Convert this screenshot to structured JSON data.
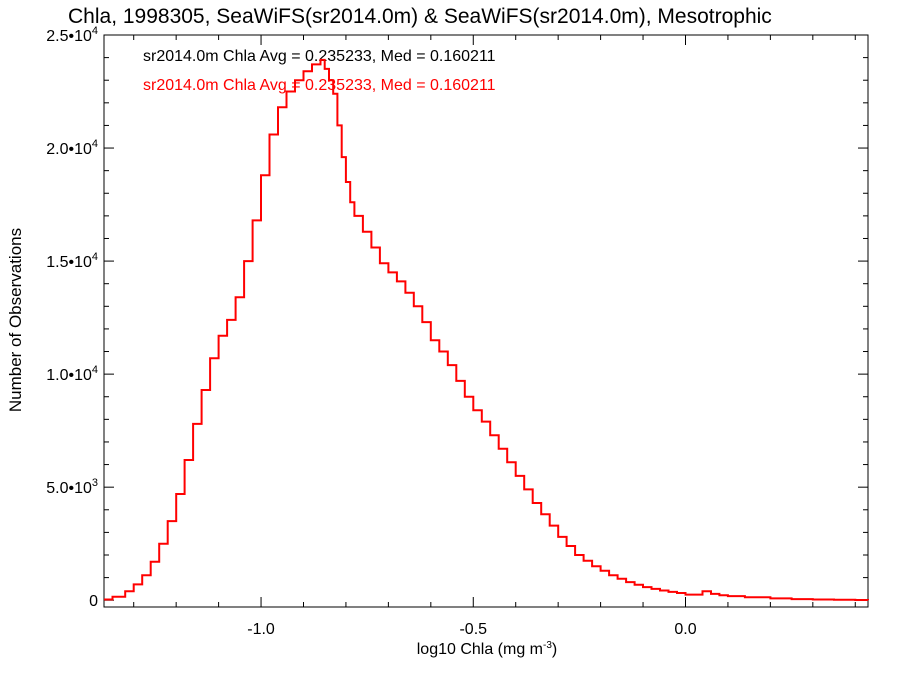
{
  "chart_data": {
    "type": "line",
    "title": "Chla, 1998305, SeaWiFS(sr2014.0m) & SeaWiFS(sr2014.0m), Mesotrophic",
    "xlabel": "log10 Chla (mg m",
    "xlabel_sup": "-3",
    "xlabel_close": ")",
    "ylabel": "Number of Observations",
    "xlim": [
      -1.37,
      0.43
    ],
    "ylim": [
      -300,
      25000
    ],
    "grid": false,
    "x_ticks": [
      {
        "value": -1.0,
        "label": "-1.0"
      },
      {
        "value": -0.5,
        "label": "-0.5"
      },
      {
        "value": 0.0,
        "label": "0.0"
      }
    ],
    "y_ticks": [
      {
        "value": 0,
        "mant": "0",
        "exp": ""
      },
      {
        "value": 5000,
        "mant": "5.0•10",
        "exp": "3"
      },
      {
        "value": 10000,
        "mant": "1.0•10",
        "exp": "4"
      },
      {
        "value": 15000,
        "mant": "1.5•10",
        "exp": "4"
      },
      {
        "value": 20000,
        "mant": "2.0•10",
        "exp": "4"
      },
      {
        "value": 25000,
        "mant": "2.5•10",
        "exp": "4"
      }
    ],
    "annotations": [
      {
        "text": "sr2014.0m Chla Avg = 0.235233, Med = 0.160211",
        "color": "#000000"
      },
      {
        "text": "sr2014.0m Chla Avg = 0.235233, Med = 0.160211",
        "color": "#ff0000"
      }
    ],
    "series": [
      {
        "color": "#ff0000",
        "x": [
          -1.37,
          -1.35,
          -1.32,
          -1.3,
          -1.28,
          -1.26,
          -1.24,
          -1.22,
          -1.2,
          -1.18,
          -1.16,
          -1.14,
          -1.12,
          -1.1,
          -1.08,
          -1.06,
          -1.04,
          -1.02,
          -1.0,
          -0.98,
          -0.96,
          -0.94,
          -0.92,
          -0.9,
          -0.88,
          -0.86,
          -0.85,
          -0.84,
          -0.83,
          -0.82,
          -0.81,
          -0.8,
          -0.79,
          -0.78,
          -0.76,
          -0.74,
          -0.72,
          -0.7,
          -0.68,
          -0.66,
          -0.64,
          -0.62,
          -0.6,
          -0.58,
          -0.56,
          -0.54,
          -0.52,
          -0.5,
          -0.48,
          -0.46,
          -0.44,
          -0.42,
          -0.4,
          -0.38,
          -0.36,
          -0.34,
          -0.32,
          -0.3,
          -0.28,
          -0.26,
          -0.24,
          -0.22,
          -0.2,
          -0.18,
          -0.16,
          -0.14,
          -0.12,
          -0.1,
          -0.08,
          -0.06,
          -0.04,
          -0.02,
          0.0,
          0.02,
          0.04,
          0.06,
          0.08,
          0.1,
          0.14,
          0.2,
          0.25,
          0.3,
          0.35,
          0.4,
          0.43
        ],
        "y": [
          30,
          150,
          400,
          700,
          1100,
          1700,
          2500,
          3500,
          4700,
          6200,
          7800,
          9300,
          10700,
          11700,
          12400,
          13400,
          15000,
          16800,
          18800,
          20600,
          21800,
          22500,
          23000,
          23400,
          23700,
          23900,
          23500,
          23000,
          22400,
          21000,
          19600,
          18500,
          17600,
          17000,
          16300,
          15600,
          14900,
          14500,
          14100,
          13600,
          13000,
          12300,
          11500,
          11000,
          10400,
          9700,
          9000,
          8400,
          7900,
          7300,
          6700,
          6100,
          5500,
          4900,
          4300,
          3800,
          3300,
          2800,
          2400,
          2000,
          1750,
          1500,
          1300,
          1100,
          950,
          800,
          680,
          580,
          500,
          430,
          370,
          320,
          250,
          250,
          400,
          280,
          220,
          180,
          130,
          80,
          50,
          30,
          20,
          10,
          5
        ]
      }
    ]
  }
}
